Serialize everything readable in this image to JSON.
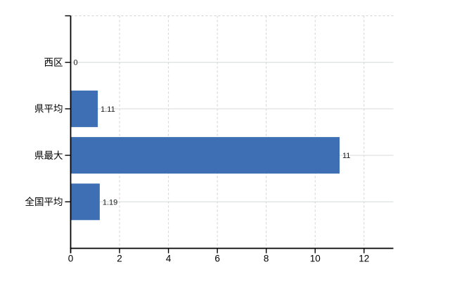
{
  "chart_data": {
    "type": "bar",
    "orientation": "horizontal",
    "title": "",
    "xlabel": "",
    "ylabel": "",
    "categories": [
      "西区",
      "県平均",
      "県最大",
      "全国平均"
    ],
    "values": [
      0,
      1.11,
      11,
      1.19
    ],
    "value_labels": [
      "0",
      "1.11",
      "11",
      "1.19"
    ],
    "xtick_labels": [
      "0",
      "2",
      "4",
      "6",
      "8",
      "10",
      "12"
    ],
    "xtick_values": [
      0,
      2,
      4,
      6,
      8,
      10,
      12
    ],
    "xlim": [
      0,
      13.2
    ],
    "grid": true,
    "legend_position": "none",
    "colors": {
      "background": "#ffffff",
      "bar": "#3E6FB4",
      "axis": "#000000",
      "h_gridline": "#D6DCD6",
      "v_gridline": "#D2D2D2",
      "top_border": "#D2D2D2",
      "category_text": "#000000",
      "tick_text": "#000000",
      "value_text": "#1A1A1A"
    }
  }
}
